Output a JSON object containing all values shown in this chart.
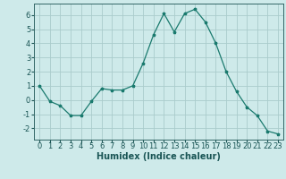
{
  "x": [
    0,
    1,
    2,
    3,
    4,
    5,
    6,
    7,
    8,
    9,
    10,
    11,
    12,
    13,
    14,
    15,
    16,
    17,
    18,
    19,
    20,
    21,
    22,
    23
  ],
  "y": [
    1.0,
    -0.1,
    -0.4,
    -1.1,
    -1.1,
    -0.1,
    0.8,
    0.7,
    0.7,
    1.0,
    2.6,
    4.6,
    6.1,
    4.8,
    6.1,
    6.4,
    5.5,
    4.0,
    2.0,
    0.6,
    -0.5,
    -1.1,
    -2.2,
    -2.4
  ],
  "line_color": "#1a7a6e",
  "marker": "*",
  "marker_size": 2.5,
  "bg_color": "#ceeaea",
  "grid_color": "#aacccc",
  "xlabel": "Humidex (Indice chaleur)",
  "xlabel_fontsize": 7,
  "tick_fontsize": 6,
  "ylim": [
    -2.8,
    6.8
  ],
  "xlim": [
    -0.5,
    23.5
  ],
  "yticks": [
    -2,
    -1,
    0,
    1,
    2,
    3,
    4,
    5,
    6
  ],
  "xticks": [
    0,
    1,
    2,
    3,
    4,
    5,
    6,
    7,
    8,
    9,
    10,
    11,
    12,
    13,
    14,
    15,
    16,
    17,
    18,
    19,
    20,
    21,
    22,
    23
  ],
  "spine_color": "#336666",
  "text_color": "#1a5555"
}
